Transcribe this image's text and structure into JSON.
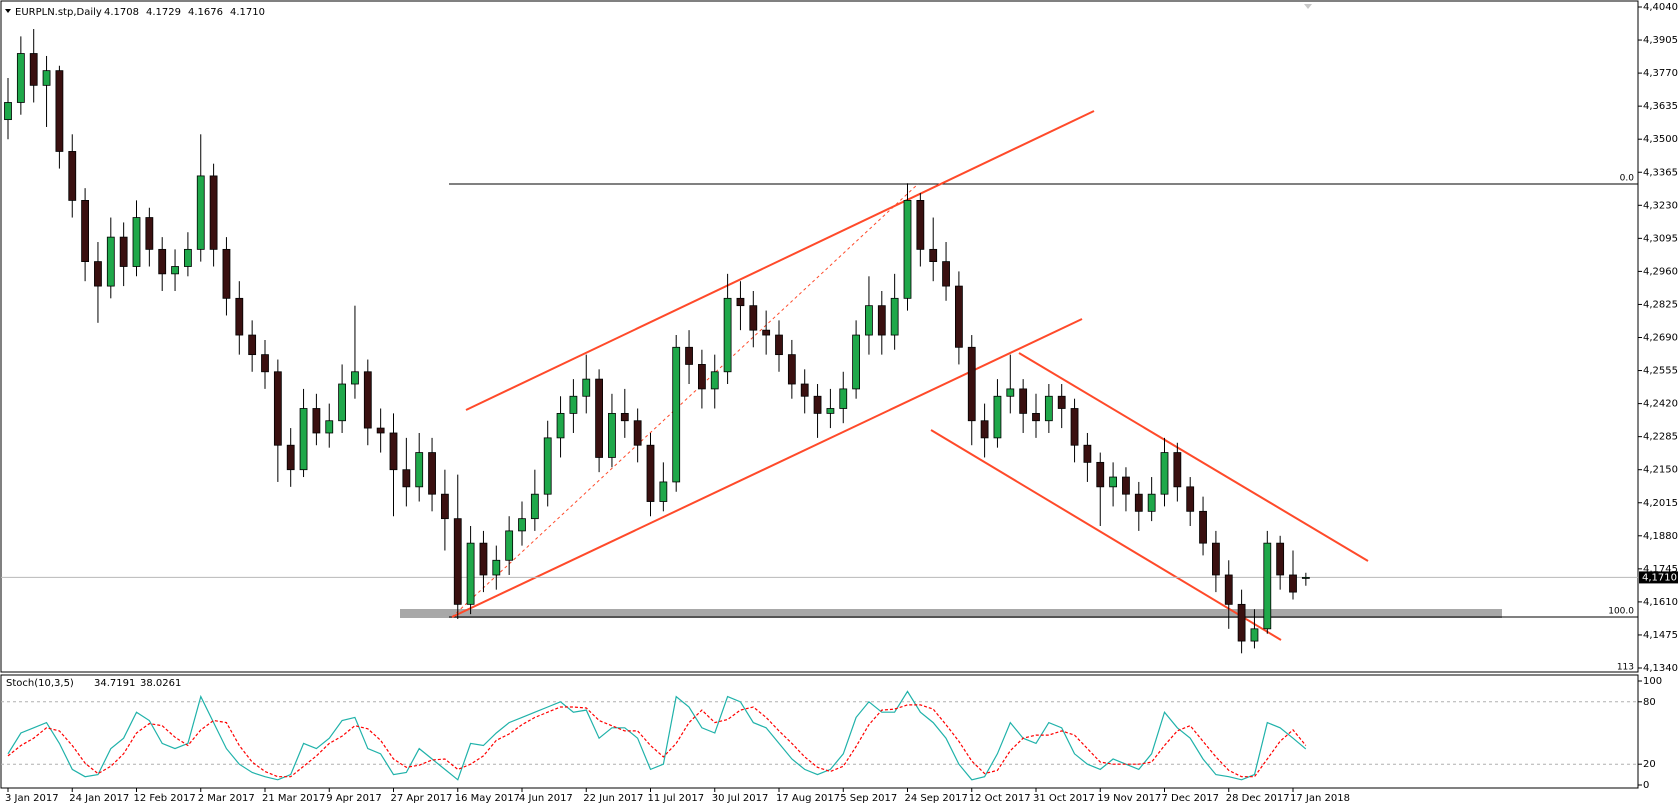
{
  "chart_data": {
    "type": "candlestick",
    "header": {
      "symbol": "EURPLN.stp,Daily",
      "ohlc": [
        "4.1708",
        "4.1729",
        "4.1676",
        "4.1710"
      ]
    },
    "up_color": "#1fa84a",
    "down_color": "#3a1010",
    "ylim": [
      4.134,
      4.404
    ],
    "yticks": [
      {
        "value": 4.134,
        "label": "4,1340"
      },
      {
        "value": 4.1475,
        "label": "4,1475"
      },
      {
        "value": 4.161,
        "label": "4,1610"
      },
      {
        "value": 4.1745,
        "label": "4,1745"
      },
      {
        "value": 4.188,
        "label": "4,1880"
      },
      {
        "value": 4.2015,
        "label": "4,2015"
      },
      {
        "value": 4.215,
        "label": "4,2150"
      },
      {
        "value": 4.2285,
        "label": "4,2285"
      },
      {
        "value": 4.242,
        "label": "4,2420"
      },
      {
        "value": 4.2555,
        "label": "4,2555"
      },
      {
        "value": 4.269,
        "label": "4,2690"
      },
      {
        "value": 4.2825,
        "label": "4,2825"
      },
      {
        "value": 4.296,
        "label": "4,2960"
      },
      {
        "value": 4.3095,
        "label": "4,3095"
      },
      {
        "value": 4.323,
        "label": "4,3230"
      },
      {
        "value": 4.3365,
        "label": "4,3365"
      },
      {
        "value": 4.35,
        "label": "4,3500"
      },
      {
        "value": 4.3635,
        "label": "4,3635"
      },
      {
        "value": 4.377,
        "label": "4,3770"
      },
      {
        "value": 4.3905,
        "label": "4,3905"
      },
      {
        "value": 4.404,
        "label": "4,4040"
      }
    ],
    "current_price": {
      "value": 4.171,
      "label": "4,1710"
    },
    "fib_labels": [
      "0.0",
      "100.0",
      "113"
    ],
    "categories": [
      "3 Jan 2017",
      null,
      null,
      null,
      null,
      "24 Jan 2017",
      null,
      null,
      null,
      null,
      "12 Feb 2017",
      null,
      null,
      null,
      null,
      "2 Mar 2017",
      null,
      null,
      null,
      null,
      "21 Mar 2017",
      null,
      null,
      null,
      null,
      "9 Apr 2017",
      null,
      null,
      null,
      null,
      "27 Apr 2017",
      null,
      null,
      null,
      null,
      "16 May 2017",
      null,
      null,
      null,
      null,
      "4 Jun 2017",
      null,
      null,
      null,
      null,
      "22 Jun 2017",
      null,
      null,
      null,
      null,
      "11 Jul 2017",
      null,
      null,
      null,
      null,
      "30 Jul 2017",
      null,
      null,
      null,
      null,
      "17 Aug 2017",
      null,
      null,
      null,
      null,
      "5 Sep 2017",
      null,
      null,
      null,
      null,
      "24 Sep 2017",
      null,
      null,
      null,
      null,
      "12 Oct 2017",
      null,
      null,
      null,
      null,
      "31 Oct 2017",
      null,
      null,
      null,
      null,
      "19 Nov 2017",
      null,
      null,
      null,
      null,
      "7 Dec 2017",
      null,
      null,
      null,
      null,
      "28 Dec 2017",
      null,
      null,
      null,
      null,
      "17 Jan 2018",
      null
    ],
    "candles": [
      [
        4.358,
        4.375,
        4.35,
        4.365
      ],
      [
        4.365,
        4.392,
        4.36,
        4.385
      ],
      [
        4.385,
        4.395,
        4.365,
        4.372
      ],
      [
        4.372,
        4.384,
        4.355,
        4.378
      ],
      [
        4.378,
        4.38,
        4.338,
        4.345
      ],
      [
        4.345,
        4.352,
        4.318,
        4.325
      ],
      [
        4.325,
        4.33,
        4.292,
        4.3
      ],
      [
        4.3,
        4.308,
        4.275,
        4.29
      ],
      [
        4.29,
        4.318,
        4.285,
        4.31
      ],
      [
        4.31,
        4.316,
        4.29,
        4.298
      ],
      [
        4.298,
        4.325,
        4.294,
        4.318
      ],
      [
        4.318,
        4.322,
        4.298,
        4.305
      ],
      [
        4.305,
        4.31,
        4.288,
        4.295
      ],
      [
        4.295,
        4.305,
        4.288,
        4.298
      ],
      [
        4.298,
        4.312,
        4.294,
        4.305
      ],
      [
        4.305,
        4.352,
        4.3,
        4.335
      ],
      [
        4.335,
        4.34,
        4.298,
        4.305
      ],
      [
        4.305,
        4.31,
        4.278,
        4.285
      ],
      [
        4.285,
        4.292,
        4.262,
        4.27
      ],
      [
        4.27,
        4.276,
        4.255,
        4.262
      ],
      [
        4.262,
        4.268,
        4.248,
        4.255
      ],
      [
        4.255,
        4.26,
        4.21,
        4.225
      ],
      [
        4.225,
        4.232,
        4.208,
        4.215
      ],
      [
        4.215,
        4.248,
        4.212,
        4.24
      ],
      [
        4.24,
        4.246,
        4.225,
        4.23
      ],
      [
        4.23,
        4.242,
        4.224,
        4.235
      ],
      [
        4.235,
        4.258,
        4.23,
        4.25
      ],
      [
        4.25,
        4.282,
        4.244,
        4.255
      ],
      [
        4.255,
        4.26,
        4.225,
        4.232
      ],
      [
        4.232,
        4.24,
        4.222,
        4.23
      ],
      [
        4.23,
        4.238,
        4.196,
        4.215
      ],
      [
        4.215,
        4.228,
        4.2,
        4.208
      ],
      [
        4.208,
        4.23,
        4.202,
        4.222
      ],
      [
        4.222,
        4.228,
        4.198,
        4.205
      ],
      [
        4.205,
        4.215,
        4.182,
        4.195
      ],
      [
        4.195,
        4.213,
        4.154,
        4.16
      ],
      [
        4.16,
        4.192,
        4.156,
        4.185
      ],
      [
        4.185,
        4.19,
        4.165,
        4.172
      ],
      [
        4.172,
        4.184,
        4.166,
        4.178
      ],
      [
        4.178,
        4.196,
        4.172,
        4.19
      ],
      [
        4.19,
        4.202,
        4.184,
        4.195
      ],
      [
        4.195,
        4.215,
        4.19,
        4.205
      ],
      [
        4.205,
        4.235,
        4.2,
        4.228
      ],
      [
        4.228,
        4.245,
        4.22,
        4.238
      ],
      [
        4.238,
        4.252,
        4.23,
        4.245
      ],
      [
        4.245,
        4.262,
        4.238,
        4.252
      ],
      [
        4.252,
        4.256,
        4.214,
        4.22
      ],
      [
        4.22,
        4.246,
        4.216,
        4.238
      ],
      [
        4.238,
        4.248,
        4.228,
        4.235
      ],
      [
        4.235,
        4.24,
        4.218,
        4.225
      ],
      [
        4.225,
        4.23,
        4.196,
        4.202
      ],
      [
        4.202,
        4.218,
        4.198,
        4.21
      ],
      [
        4.21,
        4.27,
        4.206,
        4.265
      ],
      [
        4.265,
        4.272,
        4.25,
        4.258
      ],
      [
        4.258,
        4.264,
        4.24,
        4.248
      ],
      [
        4.248,
        4.262,
        4.24,
        4.255
      ],
      [
        4.255,
        4.295,
        4.25,
        4.285
      ],
      [
        4.285,
        4.292,
        4.272,
        4.282
      ],
      [
        4.282,
        4.288,
        4.265,
        4.272
      ],
      [
        4.272,
        4.28,
        4.262,
        4.27
      ],
      [
        4.27,
        4.276,
        4.255,
        4.262
      ],
      [
        4.262,
        4.268,
        4.244,
        4.25
      ],
      [
        4.25,
        4.256,
        4.238,
        4.245
      ],
      [
        4.245,
        4.25,
        4.228,
        4.238
      ],
      [
        4.238,
        4.248,
        4.232,
        4.24
      ],
      [
        4.24,
        4.255,
        4.234,
        4.248
      ],
      [
        4.248,
        4.276,
        4.244,
        4.27
      ],
      [
        4.27,
        4.294,
        4.262,
        4.282
      ],
      [
        4.282,
        4.288,
        4.262,
        4.27
      ],
      [
        4.27,
        4.295,
        4.264,
        4.285
      ],
      [
        4.285,
        4.332,
        4.28,
        4.325
      ],
      [
        4.325,
        4.328,
        4.298,
        4.305
      ],
      [
        4.305,
        4.318,
        4.292,
        4.3
      ],
      [
        4.3,
        4.308,
        4.284,
        4.29
      ],
      [
        4.29,
        4.296,
        4.258,
        4.265
      ],
      [
        4.265,
        4.27,
        4.225,
        4.235
      ],
      [
        4.235,
        4.242,
        4.22,
        4.228
      ],
      [
        4.228,
        4.252,
        4.224,
        4.245
      ],
      [
        4.245,
        4.262,
        4.238,
        4.248
      ],
      [
        4.248,
        4.252,
        4.23,
        4.238
      ],
      [
        4.238,
        4.246,
        4.228,
        4.235
      ],
      [
        4.235,
        4.25,
        4.23,
        4.245
      ],
      [
        4.245,
        4.25,
        4.232,
        4.24
      ],
      [
        4.24,
        4.244,
        4.218,
        4.225
      ],
      [
        4.225,
        4.23,
        4.21,
        4.218
      ],
      [
        4.218,
        4.222,
        4.192,
        4.208
      ],
      [
        4.208,
        4.218,
        4.2,
        4.212
      ],
      [
        4.212,
        4.216,
        4.198,
        4.205
      ],
      [
        4.205,
        4.21,
        4.19,
        4.198
      ],
      [
        4.198,
        4.212,
        4.194,
        4.205
      ],
      [
        4.205,
        4.228,
        4.2,
        4.222
      ],
      [
        4.222,
        4.226,
        4.202,
        4.208
      ],
      [
        4.208,
        4.212,
        4.192,
        4.198
      ],
      [
        4.198,
        4.204,
        4.18,
        4.185
      ],
      [
        4.185,
        4.19,
        4.165,
        4.172
      ],
      [
        4.172,
        4.178,
        4.15,
        4.16
      ],
      [
        4.16,
        4.166,
        4.14,
        4.145
      ],
      [
        4.145,
        4.158,
        4.142,
        4.15
      ],
      [
        4.15,
        4.19,
        4.148,
        4.185
      ],
      [
        4.185,
        4.188,
        4.166,
        4.172
      ],
      [
        4.172,
        4.182,
        4.162,
        4.165
      ],
      [
        4.1708,
        4.1729,
        4.1676,
        4.171
      ]
    ],
    "stochastic": {
      "title": "Stoch(10,3,5)",
      "value_labels": [
        "34.7191",
        "38.0261"
      ],
      "ylim": [
        0,
        100
      ],
      "yticks": [
        0,
        20,
        80,
        100
      ],
      "series": [
        {
          "color": "#20b2aa",
          "values": [
            30,
            50,
            55,
            60,
            40,
            15,
            8,
            10,
            35,
            45,
            70,
            62,
            40,
            35,
            40,
            85,
            60,
            35,
            20,
            12,
            8,
            5,
            10,
            40,
            35,
            45,
            62,
            65,
            35,
            30,
            10,
            12,
            35,
            25,
            15,
            5,
            40,
            38,
            50,
            60,
            65,
            70,
            75,
            80,
            70,
            72,
            45,
            55,
            55,
            45,
            15,
            20,
            85,
            75,
            55,
            50,
            85,
            80,
            60,
            55,
            40,
            25,
            15,
            10,
            15,
            30,
            65,
            80,
            70,
            70,
            90,
            70,
            60,
            45,
            20,
            5,
            8,
            30,
            60,
            45,
            40,
            60,
            55,
            30,
            20,
            15,
            25,
            20,
            15,
            30,
            70,
            55,
            45,
            25,
            10,
            8,
            5,
            10,
            60,
            55,
            45,
            34.7191
          ]
        },
        {
          "color": "#ff0000",
          "values": [
            28,
            38,
            45,
            55,
            52,
            38,
            21,
            11,
            18,
            30,
            50,
            59,
            57,
            46,
            38,
            53,
            62,
            60,
            38,
            22,
            13,
            8,
            8,
            18,
            28,
            40,
            47,
            57,
            54,
            43,
            25,
            17,
            19,
            24,
            25,
            15,
            20,
            28,
            43,
            49,
            58,
            65,
            70,
            75,
            75,
            74,
            62,
            57,
            52,
            52,
            38,
            27,
            40,
            60,
            72,
            60,
            63,
            72,
            75,
            65,
            52,
            40,
            27,
            17,
            13,
            18,
            37,
            58,
            72,
            73,
            77,
            77,
            73,
            58,
            42,
            23,
            11,
            14,
            33,
            45,
            48,
            48,
            52,
            48,
            35,
            22,
            20,
            20,
            20,
            22,
            38,
            52,
            57,
            42,
            27,
            14,
            8,
            8,
            25,
            42,
            53,
            38.0261
          ]
        }
      ]
    }
  }
}
